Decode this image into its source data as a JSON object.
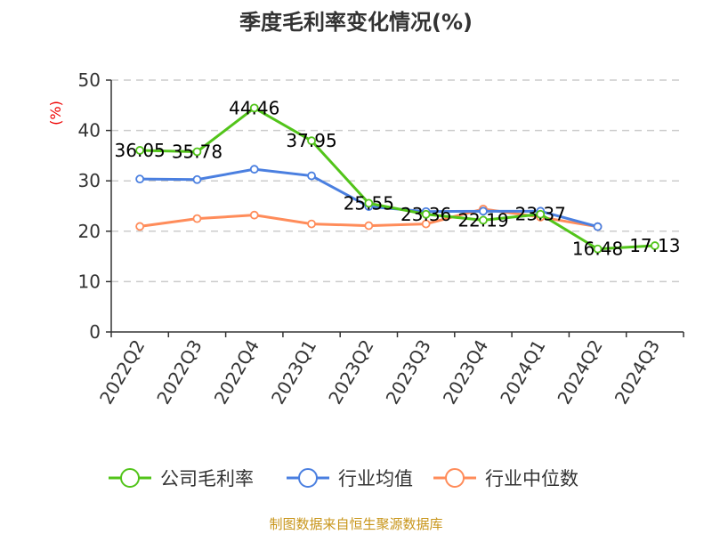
{
  "chart_data": {
    "type": "line",
    "title": "季度毛利率变化情况(%)",
    "ylabel": "(%)",
    "xlabel": "",
    "ylim": [
      0,
      50
    ],
    "yticks": [
      0,
      10,
      20,
      30,
      40,
      50
    ],
    "grid": true,
    "legend_position": "bottom",
    "categories": [
      "2022Q2",
      "2022Q3",
      "2022Q4",
      "2023Q1",
      "2023Q2",
      "2023Q3",
      "2023Q4",
      "2024Q1",
      "2024Q2",
      "2024Q3"
    ],
    "series": [
      {
        "name": "公司毛利率",
        "color": "#52c41a",
        "show_labels": true,
        "values": [
          36.05,
          35.78,
          44.46,
          37.95,
          25.55,
          23.36,
          22.19,
          23.37,
          16.48,
          17.13
        ]
      },
      {
        "name": "行业均值",
        "color": "#4a7fe0",
        "show_labels": false,
        "values": [
          30.36,
          30.25,
          32.3,
          31.0,
          24.9,
          23.9,
          23.97,
          23.97,
          20.9,
          null
        ]
      },
      {
        "name": "行业中位数",
        "color": "#ff8c5a",
        "show_labels": false,
        "values": [
          20.95,
          22.5,
          23.2,
          21.45,
          21.1,
          21.45,
          24.4,
          22.8,
          20.9,
          null
        ]
      }
    ],
    "source": "制图数据来自恒生聚源数据库"
  }
}
